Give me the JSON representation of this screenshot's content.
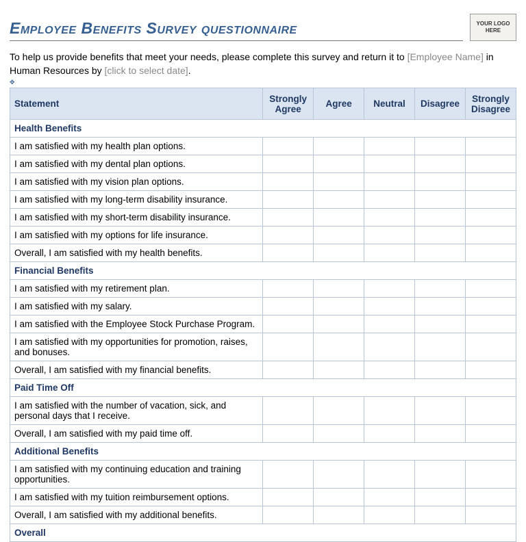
{
  "title": "Employee Benefits Survey questionnaire",
  "logo_text": "YOUR LOGO HERE",
  "intro": {
    "part1": "To help us provide benefits that meet your needs, please complete this survey and return it to ",
    "placeholder1": "[Employee Name]",
    "part2": " in Human Resources by ",
    "placeholder2": "[click to select date]",
    "part3": "."
  },
  "columns": [
    "Statement",
    "Strongly Agree",
    "Agree",
    "Neutral",
    "Disagree",
    "Strongly Disagree"
  ],
  "sections": [
    {
      "heading": "Health Benefits",
      "statements": [
        "I am satisfied with my health plan options.",
        "I am satisfied with my dental plan options.",
        "I am satisfied with my vision plan options.",
        "I am satisfied with my long-term disability insurance.",
        "I am satisfied with my short-term disability insurance.",
        "I am satisfied with my options for life insurance.",
        "Overall, I am satisfied with my health benefits."
      ]
    },
    {
      "heading": "Financial Benefits",
      "statements": [
        "I am satisfied with my retirement plan.",
        "I am satisfied with my salary.",
        "I am satisfied with the Employee Stock Purchase Program.",
        "I am satisfied with my opportunities for promotion, raises, and bonuses.",
        "Overall, I am satisfied with my financial benefits."
      ]
    },
    {
      "heading": "Paid Time Off",
      "statements": [
        "I am satisfied with the number of vacation, sick, and personal days that I receive.",
        "Overall, I am satisfied with my paid time off."
      ]
    },
    {
      "heading": "Additional Benefits",
      "statements": [
        "I am satisfied with my continuing education and training opportunities.",
        "I am satisfied with my tuition reimbursement options.",
        "Overall, I am satisfied with my additional benefits."
      ]
    },
    {
      "heading": "Overall",
      "statements": []
    }
  ],
  "colors": {
    "header_bg": "#dbe5f1",
    "header_text": "#1f3864",
    "border": "#b7c5d9",
    "title": "#355f91"
  }
}
